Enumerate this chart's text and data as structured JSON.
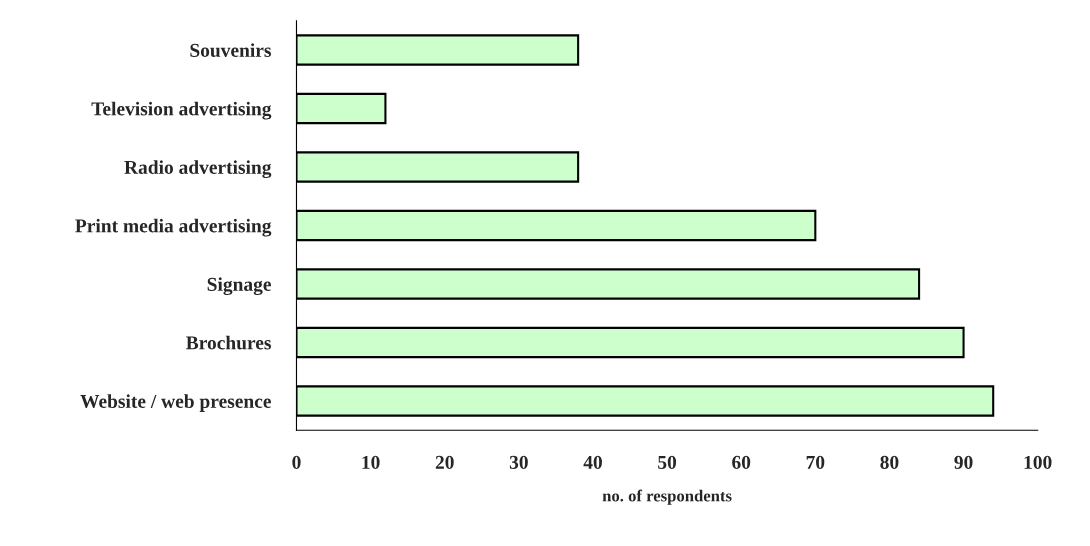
{
  "chart_data": {
    "type": "bar",
    "orientation": "horizontal",
    "categories": [
      "Souvenirs",
      "Television advertising",
      "Radio advertising",
      "Print media advertising",
      "Signage",
      "Brochures",
      "Website / web presence"
    ],
    "values": [
      38,
      12,
      38,
      70,
      84,
      90,
      94
    ],
    "color": "#ccffcc",
    "xlabel": "no. of respondents",
    "xlim": [
      0,
      100
    ],
    "xticks": [
      0,
      10,
      20,
      30,
      40,
      50,
      60,
      70,
      80,
      90,
      100
    ],
    "grid": false
  }
}
